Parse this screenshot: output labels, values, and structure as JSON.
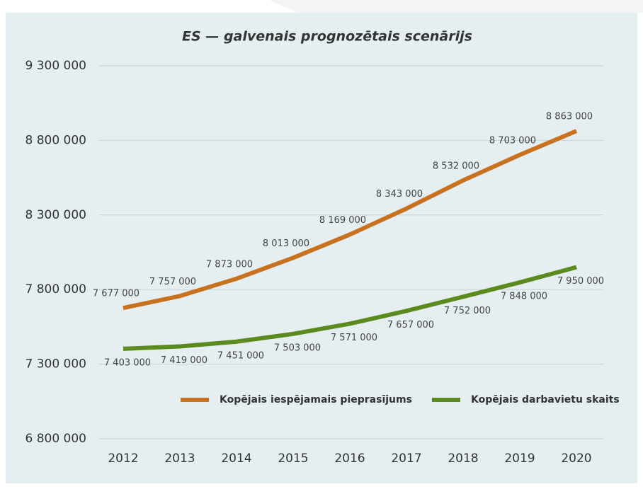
{
  "chart_data": {
    "type": "line",
    "title": "ES — galvenais prognozētais scenārijs",
    "categories": [
      "2012",
      "2013",
      "2014",
      "2015",
      "2016",
      "2017",
      "2018",
      "2019",
      "2020"
    ],
    "series": [
      {
        "name": "Kopējais iespējamais pieprasījums",
        "color": "#c8711e",
        "values": [
          7677000,
          7757000,
          7873000,
          8013000,
          8169000,
          8343000,
          8532000,
          8703000,
          8863000
        ],
        "value_labels": [
          "7 677 000",
          "7 757 000",
          "7 873 000",
          "8 013 000",
          "8 169 000",
          "8 343 000",
          "8 532 000",
          "8 703 000",
          "8 863 000"
        ]
      },
      {
        "name": "Kopējais darbavietu skaits",
        "color": "#5b8a1e",
        "values": [
          7403000,
          7419000,
          7451000,
          7503000,
          7571000,
          7657000,
          7752000,
          7848000,
          7950000
        ],
        "value_labels": [
          "7 403 000",
          "7 419 000",
          "7 451 000",
          "7 503 000",
          "7 571 000",
          "7 657 000",
          "7 752 000",
          "7 848 000",
          "7 950 000"
        ]
      }
    ],
    "ylim": [
      6800000,
      9300000
    ],
    "yticks": [
      {
        "value": 6800000,
        "label": "6 800 000"
      },
      {
        "value": 7300000,
        "label": "7 300 000"
      },
      {
        "value": 7800000,
        "label": "7 800 000"
      },
      {
        "value": 8300000,
        "label": "8 300 000"
      },
      {
        "value": 8800000,
        "label": "8 800 000"
      },
      {
        "value": 9300000,
        "label": "9 300 000"
      }
    ],
    "grid": true,
    "legend": "bottom"
  }
}
